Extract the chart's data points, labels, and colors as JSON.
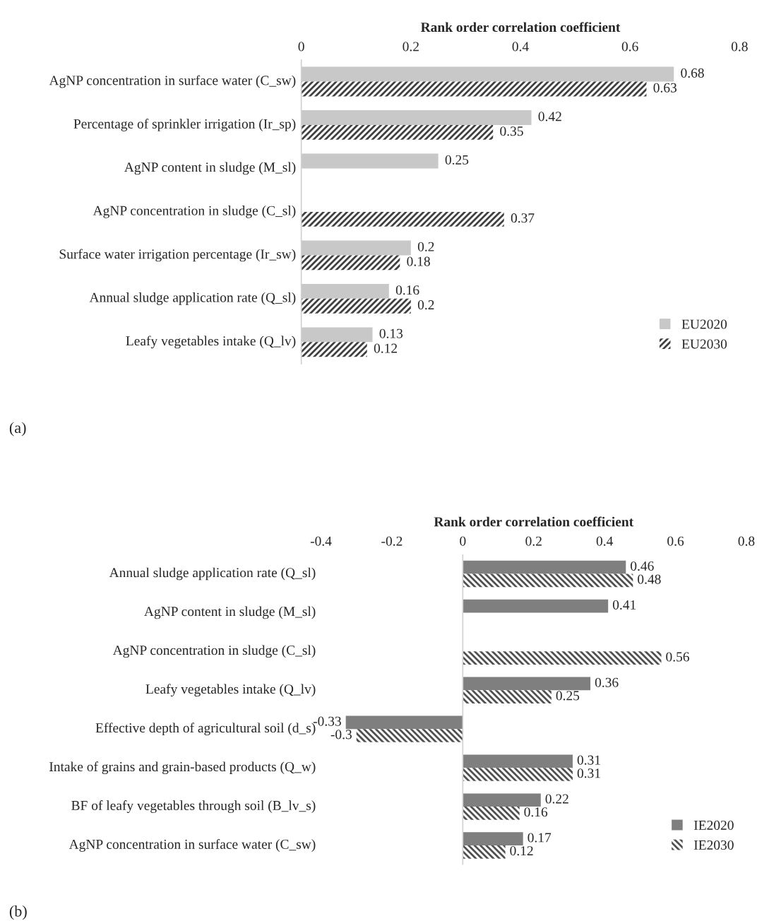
{
  "chart_data": [
    {
      "type": "bar",
      "orientation": "horizontal",
      "xlabel": "Rank order correlation coefficient",
      "xlim": [
        0,
        0.8
      ],
      "xticks": [
        0,
        0.2,
        0.4,
        0.6,
        0.8
      ],
      "categories": [
        "AgNP concentration in surface water (C_sw)",
        "Percentage of sprinkler irrigation (Ir_sp)",
        "AgNP content in sludge (M_sl)",
        "AgNP concentration in sludge (C_sl)",
        "Surface water irrigation percentage (Ir_sw)",
        "Annual sludge application rate (Q_sl)",
        "Leafy vegetables intake (Q_lv)"
      ],
      "series": [
        {
          "name": "EU2020",
          "color": "#c8c8c8",
          "values": [
            0.68,
            0.42,
            0.25,
            null,
            0.2,
            0.16,
            0.13
          ]
        },
        {
          "name": "EU2030",
          "color": "#404040",
          "values": [
            0.63,
            0.35,
            null,
            0.37,
            0.18,
            0.2,
            0.12
          ]
        }
      ],
      "data_labels": true,
      "legend": "bottom right",
      "grid": false,
      "annotations": [
        "(a)"
      ]
    },
    {
      "type": "bar",
      "orientation": "horizontal",
      "xlabel": "Rank order correlation coefficient",
      "xlim": [
        -0.4,
        0.8
      ],
      "xticks": [
        -0.4,
        -0.2,
        0,
        0.2,
        0.4,
        0.6,
        0.8
      ],
      "categories": [
        "Annual sludge application rate (Q_sl)",
        "AgNP content in sludge (M_sl)",
        "AgNP concentration in sludge (C_sl)",
        "Leafy vegetables intake (Q_lv)",
        "Effective depth of agricultural soil (d_s)",
        "Intake of grains and grain-based products (Q_w)",
        "BF of leafy vegetables through soil (B_lv_s)",
        "AgNP concentration in surface water (C_sw)"
      ],
      "series": [
        {
          "name": "IE2020",
          "color": "#7f7f7f",
          "values": [
            0.46,
            0.41,
            null,
            0.36,
            -0.33,
            0.31,
            0.22,
            0.17
          ]
        },
        {
          "name": "IE2030",
          "color": "#505050",
          "values": [
            0.48,
            null,
            0.56,
            0.25,
            -0.3,
            0.31,
            0.16,
            0.12
          ]
        }
      ],
      "data_labels": true,
      "legend": "bottom right",
      "grid": false,
      "annotations": [
        "(b)"
      ],
      "ref_lines": [
        {
          "axis": "x",
          "value": 0,
          "color": "#d0d0d0"
        }
      ]
    }
  ]
}
